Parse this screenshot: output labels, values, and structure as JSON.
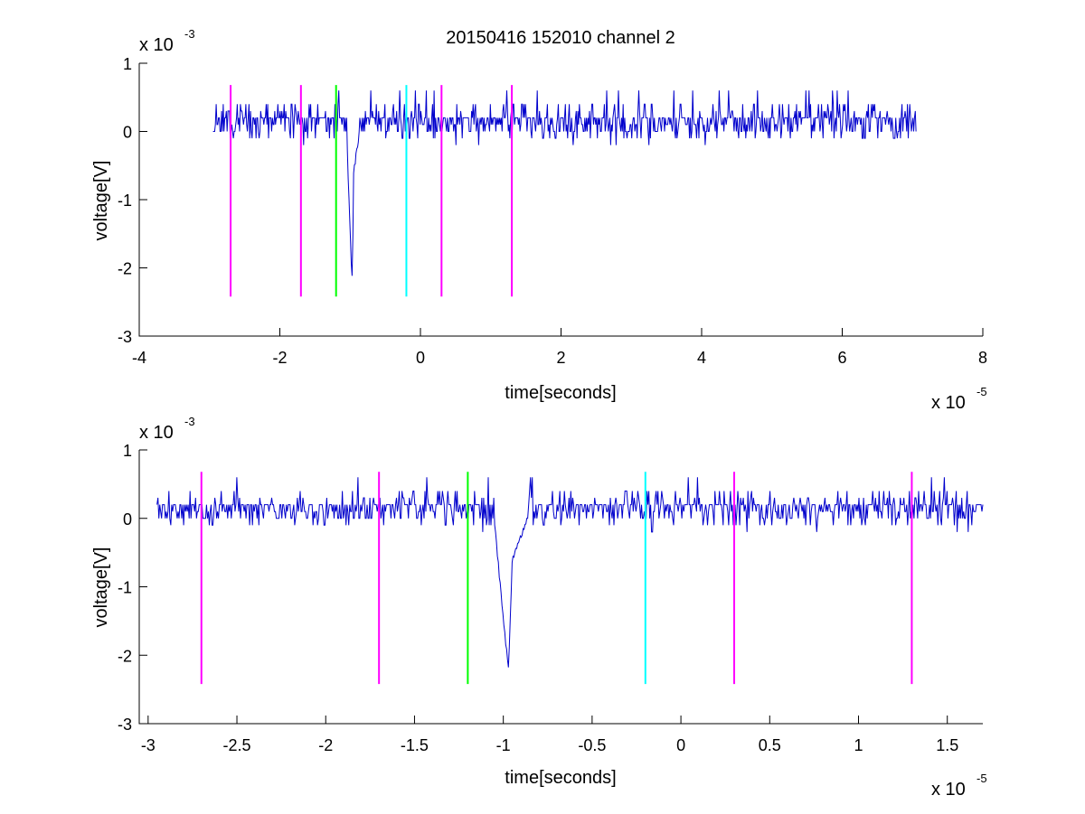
{
  "figure_title": "20150416 152010 channel 2",
  "chart_data": [
    {
      "type": "line",
      "xlabel": "time[seconds]",
      "ylabel": "voltage[V]",
      "xlim": [
        -4,
        8
      ],
      "ylim": [
        -3,
        1
      ],
      "xticks": [
        -4,
        -2,
        0,
        2,
        4,
        6,
        8
      ],
      "yticks": [
        -3,
        -2,
        -1,
        0,
        1
      ],
      "xtick_labels": [
        "-4",
        "-2",
        "0",
        "2",
        "4",
        "6",
        "8"
      ],
      "ytick_labels": [
        "-3",
        "-2",
        "-1",
        "0",
        "1"
      ],
      "x_multiplier": {
        "base": "x 10",
        "exp": "-5"
      },
      "y_multiplier": {
        "base": "x 10",
        "exp": "-3"
      },
      "signal_color": "#0000cc",
      "signal_range": [
        -2.95,
        7.05
      ],
      "signal": {
        "x": [
          -2.95,
          -1.3,
          -1.05,
          -1.0,
          -0.97,
          -0.95,
          -0.85,
          7.05
        ],
        "y": [
          0.2,
          0.2,
          0.0,
          -1.5,
          -2.2,
          -0.6,
          0.1,
          0.15
        ]
      },
      "markers": [
        {
          "x": -2.7,
          "color": "#ff00ff",
          "y_range": [
            -2.42,
            0.68
          ]
        },
        {
          "x": -1.7,
          "color": "#ff00ff",
          "y_range": [
            -2.42,
            0.68
          ]
        },
        {
          "x": -1.2,
          "color": "#00ff00",
          "y_range": [
            -2.42,
            0.68
          ]
        },
        {
          "x": -0.2,
          "color": "#00ffff",
          "y_range": [
            -2.42,
            0.68
          ]
        },
        {
          "x": 0.3,
          "color": "#ff00ff",
          "y_range": [
            -2.42,
            0.68
          ]
        },
        {
          "x": 1.3,
          "color": "#ff00ff",
          "y_range": [
            -2.42,
            0.68
          ]
        }
      ]
    },
    {
      "type": "line",
      "xlabel": "time[seconds]",
      "ylabel": "voltage[V]",
      "xlim": [
        -3.05,
        1.7
      ],
      "ylim": [
        -3,
        1
      ],
      "xticks": [
        -3,
        -2.5,
        -2,
        -1.5,
        -1,
        -0.5,
        0,
        0.5,
        1,
        1.5
      ],
      "yticks": [
        -3,
        -2,
        -1,
        0,
        1
      ],
      "xtick_labels": [
        "-3",
        "-2.5",
        "-2",
        "-1.5",
        "-1",
        "-0.5",
        "0",
        "0.5",
        "1",
        "1.5"
      ],
      "ytick_labels": [
        "-3",
        "-2",
        "-1",
        "0",
        "1"
      ],
      "x_multiplier": {
        "base": "x 10",
        "exp": "-5"
      },
      "y_multiplier": {
        "base": "x 10",
        "exp": "-3"
      },
      "signal_color": "#0000cc",
      "signal_range": [
        -2.95,
        1.7
      ],
      "signal": {
        "x": [
          -2.95,
          -1.3,
          -1.05,
          -1.0,
          -0.97,
          -0.95,
          -0.85,
          1.7
        ],
        "y": [
          0.2,
          0.2,
          0.0,
          -1.5,
          -2.2,
          -0.6,
          0.1,
          0.15
        ]
      },
      "markers": [
        {
          "x": -2.7,
          "color": "#ff00ff",
          "y_range": [
            -2.42,
            0.68
          ]
        },
        {
          "x": -1.7,
          "color": "#ff00ff",
          "y_range": [
            -2.42,
            0.68
          ]
        },
        {
          "x": -1.2,
          "color": "#00ff00",
          "y_range": [
            -2.42,
            0.68
          ]
        },
        {
          "x": -0.2,
          "color": "#00ffff",
          "y_range": [
            -2.42,
            0.68
          ]
        },
        {
          "x": 0.3,
          "color": "#ff00ff",
          "y_range": [
            -2.42,
            0.68
          ]
        },
        {
          "x": 1.3,
          "color": "#ff00ff",
          "y_range": [
            -2.42,
            0.68
          ]
        }
      ]
    }
  ]
}
